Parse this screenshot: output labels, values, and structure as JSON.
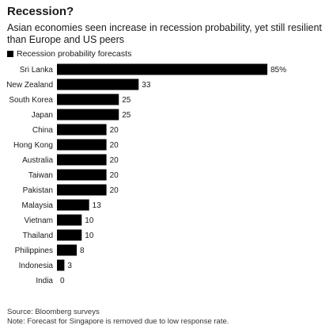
{
  "header": {
    "title": "Recession?",
    "subtitle": "Asian economies seen increase in recession probability, yet still resilient than Europe and US peers"
  },
  "legend": {
    "label": "Recession probability forecasts",
    "swatch_color": "#000000"
  },
  "footer": {
    "source": "Source: Bloomberg surveys",
    "note": "Note: Forecast for Singapore is removed due to low response rate."
  },
  "chart_data": {
    "type": "bar",
    "orientation": "horizontal",
    "categories": [
      "Sri Lanka",
      "New Zealand",
      "South Korea",
      "Japan",
      "China",
      "Hong Kong",
      "Australia",
      "Taiwan",
      "Pakistan",
      "Malaysia",
      "Vietnam",
      "Thailand",
      "Philippines",
      "Indonesia",
      "India"
    ],
    "values": [
      85,
      33,
      25,
      25,
      20,
      20,
      20,
      20,
      20,
      13,
      10,
      10,
      8,
      3,
      0
    ],
    "value_labels": [
      "85%",
      "33",
      "25",
      "25",
      "20",
      "20",
      "20",
      "20",
      "20",
      "13",
      "10",
      "10",
      "8",
      "3",
      "0"
    ],
    "bar_color": "#000000",
    "xlim": [
      0,
      85
    ],
    "grid": false,
    "legend_position": "top-left"
  }
}
